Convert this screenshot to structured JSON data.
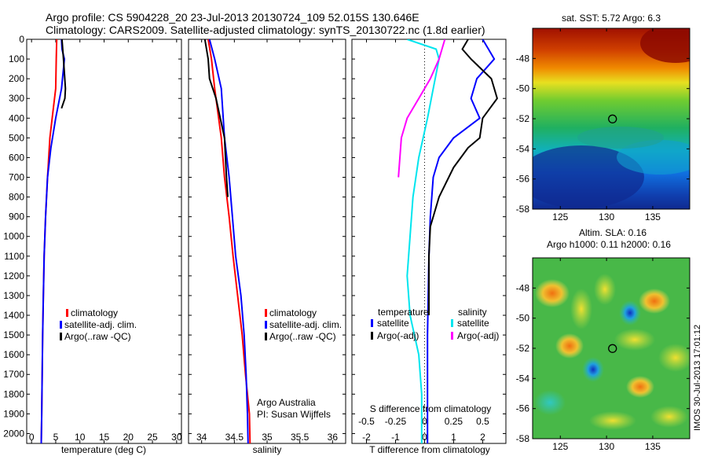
{
  "page": {
    "title_line1": "Argo profile: CS 5904228_20 23-Jul-2013 20130724_109 52.015S 130.646E",
    "title_line2": "Climatology: CARS2009. Satellite-adjusted climatology: synTS_20130722.nc (1.8d earlier)",
    "footer_note": "IMOS 30-Jul-2013 17:01:12"
  },
  "colors": {
    "climatology": "#ff0000",
    "satellite": "#0000ff",
    "argo": "#000000",
    "salinity_satellite": "#00e5ee",
    "salinity_argo": "#ff00ff"
  },
  "chart_data": [
    {
      "type": "line",
      "xlabel": "temperature (deg C)",
      "ylabel": "",
      "xlim": [
        -1,
        31
      ],
      "ylim": [
        2050,
        0
      ],
      "xticks": [
        "0",
        "5",
        "10",
        "15",
        "20",
        "25",
        "30"
      ],
      "yticks": [
        "0",
        "100",
        "200",
        "300",
        "400",
        "500",
        "600",
        "700",
        "800",
        "900",
        "1000",
        "1100",
        "1200",
        "1300",
        "1400",
        "1500",
        "1600",
        "1700",
        "1800",
        "1900",
        "2000"
      ],
      "legend": [
        "climatology",
        "satellite-adj. clim.",
        "Argo(..raw -QC)"
      ],
      "legend_position": "lower-center",
      "series": [
        {
          "name": "climatology",
          "x": [
            5.2,
            5.1,
            5.0,
            4.5,
            3.8,
            3.3,
            2.9,
            2.6,
            2.45,
            2.3,
            2.2,
            2.1,
            2.0
          ],
          "y": [
            0,
            100,
            250,
            350,
            500,
            700,
            900,
            1100,
            1300,
            1500,
            1700,
            1900,
            2050
          ]
        },
        {
          "name": "satellite-adj. clim.",
          "x": [
            6.2,
            6.3,
            6.8,
            6.2,
            5.0,
            4.0,
            3.3,
            2.9,
            2.6,
            2.45,
            2.3,
            2.2,
            2.1,
            2.0
          ],
          "y": [
            0,
            50,
            100,
            250,
            400,
            550,
            700,
            900,
            1100,
            1300,
            1500,
            1700,
            1900,
            2050
          ]
        },
        {
          "name": "Argo(..raw -QC)",
          "x": [
            6.3,
            6.6,
            7.0,
            6.9,
            6.2
          ],
          "y": [
            0,
            100,
            250,
            300,
            350
          ]
        }
      ]
    },
    {
      "type": "line",
      "xlabel": "salinity",
      "xlim": [
        33.8,
        36.2
      ],
      "ylim": [
        2050,
        0
      ],
      "xticks": [
        "34",
        "34.5",
        "35",
        "35.5",
        "36"
      ],
      "legend": [
        "climatology",
        "satellite-adj. clim.",
        "Argo(..raw -QC)"
      ],
      "legend_position": "lower-right",
      "annotation": [
        "Argo Australia",
        "PI: Susan Wijffels"
      ],
      "series": [
        {
          "name": "climatology",
          "x": [
            34.1,
            34.15,
            34.2,
            34.3,
            34.35,
            34.42,
            34.48,
            34.55,
            34.62,
            34.67,
            34.7,
            34.73,
            34.74
          ],
          "y": [
            0,
            100,
            250,
            500,
            700,
            900,
            1100,
            1300,
            1500,
            1700,
            1800,
            1900,
            2050
          ]
        },
        {
          "name": "satellite-adj. clim.",
          "x": [
            34.12,
            34.2,
            34.3,
            34.35,
            34.42,
            34.52,
            34.6,
            34.65,
            34.68,
            34.7,
            34.71
          ],
          "y": [
            0,
            100,
            250,
            500,
            700,
            1100,
            1300,
            1500,
            1700,
            1900,
            2050
          ]
        },
        {
          "name": "Argo(..raw -QC)",
          "x": [
            34.05,
            34.1,
            34.12,
            34.22,
            34.35,
            34.38,
            34.4
          ],
          "y": [
            0,
            100,
            200,
            300,
            500,
            700,
            800
          ]
        }
      ]
    },
    {
      "type": "line",
      "xlabel": "T difference from climatology",
      "secondary_xlabel": "S difference from climatology",
      "xlim": [
        -2.5,
        2.8
      ],
      "ylim": [
        2050,
        0
      ],
      "xticks": [
        "-2",
        "-1",
        "0",
        "1",
        "2"
      ],
      "secondary_xticks": [
        "-0.5",
        "-0.25",
        "0",
        "0.25",
        "0.5"
      ],
      "legend_groups": [
        {
          "title": "temperature",
          "items": [
            "satellite",
            "Argo(-adj)"
          ]
        },
        {
          "title": "salinity",
          "items": [
            "satellite",
            "Argo(-adj)"
          ]
        }
      ],
      "series": [
        {
          "name": "temperature satellite",
          "x": [
            2.0,
            2.2,
            2.4,
            1.8,
            1.6,
            1.9,
            1.0,
            0.5,
            0.3,
            0.2,
            0.15,
            0.1,
            0.1
          ],
          "y": [
            0,
            50,
            100,
            200,
            300,
            400,
            500,
            600,
            700,
            900,
            1100,
            1500,
            2050
          ]
        },
        {
          "name": "temperature Argo(-adj)",
          "x": [
            1.5,
            1.3,
            1.6,
            2.3,
            2.5,
            2.0,
            1.9,
            1.5,
            1.0,
            0.5,
            0.2,
            0.15,
            0.15
          ],
          "y": [
            0,
            50,
            100,
            200,
            300,
            400,
            500,
            550,
            650,
            800,
            950,
            1100,
            1400
          ]
        },
        {
          "name": "salinity satellite",
          "x": [
            -0.6,
            0.4,
            0.5,
            0.3,
            0.1,
            -0.2,
            -0.4,
            -0.5,
            -0.6,
            -0.5,
            -0.2,
            -0.1,
            -0.1
          ],
          "y": [
            0,
            50,
            100,
            250,
            400,
            600,
            800,
            1000,
            1200,
            1400,
            1600,
            1800,
            2050
          ]
        },
        {
          "name": "salinity Argo(-adj)",
          "x": [
            0.7,
            0.5,
            0.2,
            -0.2,
            -0.6,
            -0.8,
            -0.9
          ],
          "y": [
            0,
            100,
            200,
            300,
            400,
            500,
            700
          ]
        }
      ]
    },
    {
      "type": "heatmap",
      "title": "sat. SST: 5.72  Argo: 6.3",
      "xlim": [
        122,
        139
      ],
      "ylim": [
        -58,
        -46
      ],
      "xticks": [
        "125",
        "130",
        "135"
      ],
      "yticks": [
        "-48",
        "-50",
        "-52",
        "-54",
        "-56",
        "-58"
      ],
      "marker": {
        "lon": 130.646,
        "lat": -52.015
      }
    },
    {
      "type": "heatmap",
      "title_line1": "Altim. SLA: 0.16",
      "title_line2": "Argo h1000: 0.11 h2000: 0.16",
      "xlim": [
        122,
        139
      ],
      "ylim": [
        -58,
        -46
      ],
      "xticks": [
        "125",
        "130",
        "135"
      ],
      "yticks": [
        "-48",
        "-50",
        "-52",
        "-54",
        "-56",
        "-58"
      ],
      "marker": {
        "lon": 130.646,
        "lat": -52.015
      }
    }
  ]
}
